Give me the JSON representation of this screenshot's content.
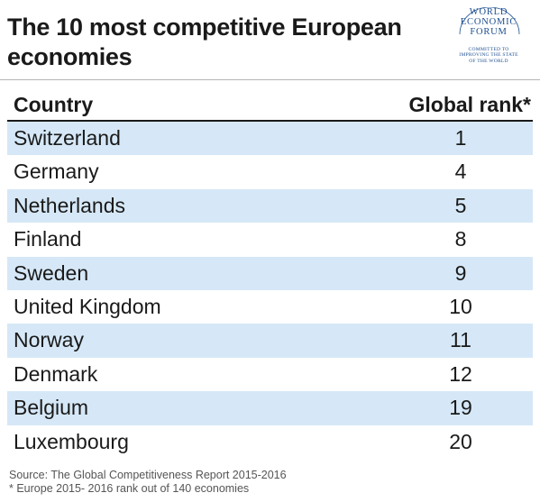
{
  "chart_data": {
    "type": "table",
    "title": "The 10 most competitive European economies",
    "columns": [
      "Country",
      "Global rank*"
    ],
    "rows": [
      {
        "country": "Switzerland",
        "rank": 1
      },
      {
        "country": "Germany",
        "rank": 4
      },
      {
        "country": "Netherlands",
        "rank": 5
      },
      {
        "country": "Finland",
        "rank": 8
      },
      {
        "country": "Sweden",
        "rank": 9
      },
      {
        "country": "United Kingdom",
        "rank": 10
      },
      {
        "country": "Norway",
        "rank": 11
      },
      {
        "country": "Denmark",
        "rank": 12
      },
      {
        "country": "Belgium",
        "rank": 19
      },
      {
        "country": "Luxembourg",
        "rank": 20
      }
    ],
    "row_shading": "alternating",
    "colors": {
      "shaded_row": "#d6e8f7",
      "header_rule": "#1a1a1a",
      "logo": "#1d4f91"
    }
  },
  "logo": {
    "name": "World Economic Forum",
    "main_text": "WORLD\nECONOMIC\nFORUM",
    "tagline": "COMMITTED TO\nIMPROVING THE STATE\nOF THE WORLD"
  },
  "footnotes": {
    "source": "Source: The Global Competitiveness Report 2015-2016",
    "note": "* Europe 2015- 2016 rank out of 140 economies"
  }
}
